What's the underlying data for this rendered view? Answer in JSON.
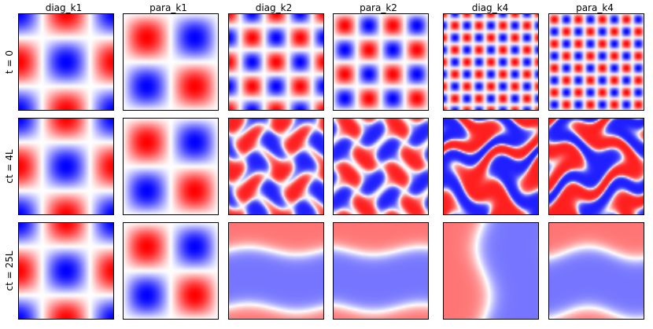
{
  "columns": [
    "diag_k1",
    "para_k1",
    "diag_k2",
    "para_k2",
    "diag_k4",
    "para_k4"
  ],
  "rows": [
    "t = 0",
    "ct = 4L",
    "ct = 25L"
  ],
  "colors": {
    "positive": "#ff0000",
    "neutral": "#ffffff",
    "negative": "#0000ff",
    "frame": "#000000"
  }
}
